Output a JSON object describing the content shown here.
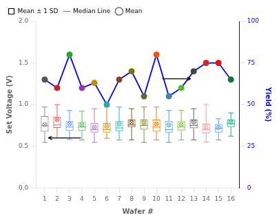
{
  "chart_data": {
    "type": "box",
    "x": [
      1,
      2,
      3,
      4,
      5,
      6,
      7,
      8,
      9,
      10,
      11,
      12,
      13,
      14,
      15,
      16
    ],
    "xlabel": "Wafer #",
    "ylabel": "Set Voltage (V)",
    "y2label": "Yield (%)",
    "xlim": [
      0.3,
      16.7
    ],
    "xticks": [
      1,
      2,
      3,
      4,
      5,
      6,
      7,
      8,
      9,
      10,
      11,
      12,
      13,
      14,
      15,
      16
    ],
    "ylim": [
      0.0,
      2.0
    ],
    "yticks": [
      {
        "value": 0,
        "label": "0.0"
      },
      0.5,
      {
        "value": 1,
        "label": "1.0"
      },
      1.5,
      {
        "value": 2,
        "label": "2.0"
      }
    ],
    "y2lim": [
      0,
      100
    ],
    "y2ticks": [
      0,
      25,
      50,
      75,
      100
    ],
    "grid": false,
    "legend": "upper left",
    "series": [
      {
        "name": "Mean ± 1 SD",
        "type": "box",
        "colors": [
          "#888888",
          "#FF5555",
          "#6699FF",
          "#55BB55",
          "#AA77CC",
          "#CC8800",
          "#22BBBB",
          "#885522",
          "#888833",
          "#FF7700",
          "#5599DD",
          "#77BB44",
          "#666666",
          "#FF9999",
          "#5599FF",
          "#22AA77"
        ],
        "q1": [
          0.675,
          0.72,
          0.685,
          0.685,
          0.665,
          0.665,
          0.68,
          0.73,
          0.7,
          0.675,
          0.665,
          0.69,
          0.715,
          0.655,
          0.665,
          0.73
        ],
        "q3": [
          0.86,
          0.855,
          0.8,
          0.79,
          0.78,
          0.78,
          0.8,
          0.82,
          0.82,
          0.82,
          0.8,
          0.8,
          0.82,
          0.77,
          0.765,
          0.82
        ],
        "whislo": [
          0.545,
          0.6,
          0.58,
          0.575,
          0.545,
          0.595,
          0.575,
          0.575,
          0.545,
          0.575,
          0.545,
          0.575,
          0.575,
          0.55,
          0.575,
          0.62
        ],
        "whishi": [
          0.97,
          1.0,
          0.93,
          0.92,
          0.95,
          0.97,
          0.97,
          0.95,
          0.97,
          0.97,
          0.93,
          0.93,
          0.95,
          1.0,
          0.83,
          0.9
        ]
      },
      {
        "name": "Median Line",
        "type": "median",
        "colors": [
          "#888888",
          "#FF5555",
          "#6699FF",
          "#55BB55",
          "#AA77CC",
          "#CC8800",
          "#22BBBB",
          "#885522",
          "#888833",
          "#FF7700",
          "#5599DD",
          "#77BB44",
          "#666666",
          "#FF9999",
          "#5599FF",
          "#22AA77"
        ],
        "values": [
          0.745,
          0.755,
          0.73,
          0.73,
          0.7,
          0.7,
          0.72,
          0.755,
          0.75,
          0.73,
          0.7,
          0.73,
          0.75,
          0.7,
          0.715,
          0.77
        ]
      },
      {
        "name": "Mean",
        "type": "mean",
        "marker": "circle_x",
        "colors": [
          "#888888",
          "#FF5555",
          "#6699FF",
          "#55BB55",
          "#AA77CC",
          "#CC8800",
          "#22BBBB",
          "#885522",
          "#888833",
          "#FF7700",
          "#5599DD",
          "#77BB44",
          "#666666",
          "#FF9999",
          "#5599FF",
          "#22AA77"
        ],
        "values": [
          0.76,
          0.82,
          0.77,
          0.755,
          0.73,
          0.74,
          0.765,
          0.785,
          0.78,
          0.77,
          0.755,
          0.76,
          0.79,
          0.725,
          0.725,
          0.79
        ]
      },
      {
        "type": "line",
        "axis": "y2",
        "color": "blue",
        "marker": "circle",
        "colors": [
          "#555555",
          "#CC2222",
          "#22AA22",
          "#9933BB",
          "#CC8800",
          "#22AAAA",
          "#884422",
          "#777700",
          "#556B2F",
          "#FF5500",
          "#3388BB",
          "#55BB22",
          "#444444",
          "#DD2222",
          "#EE1111",
          "#117733"
        ],
        "values": [
          65,
          60,
          80,
          60,
          63,
          50,
          65,
          70,
          55,
          80,
          55,
          60,
          70,
          75,
          75,
          65
        ]
      }
    ]
  }
}
